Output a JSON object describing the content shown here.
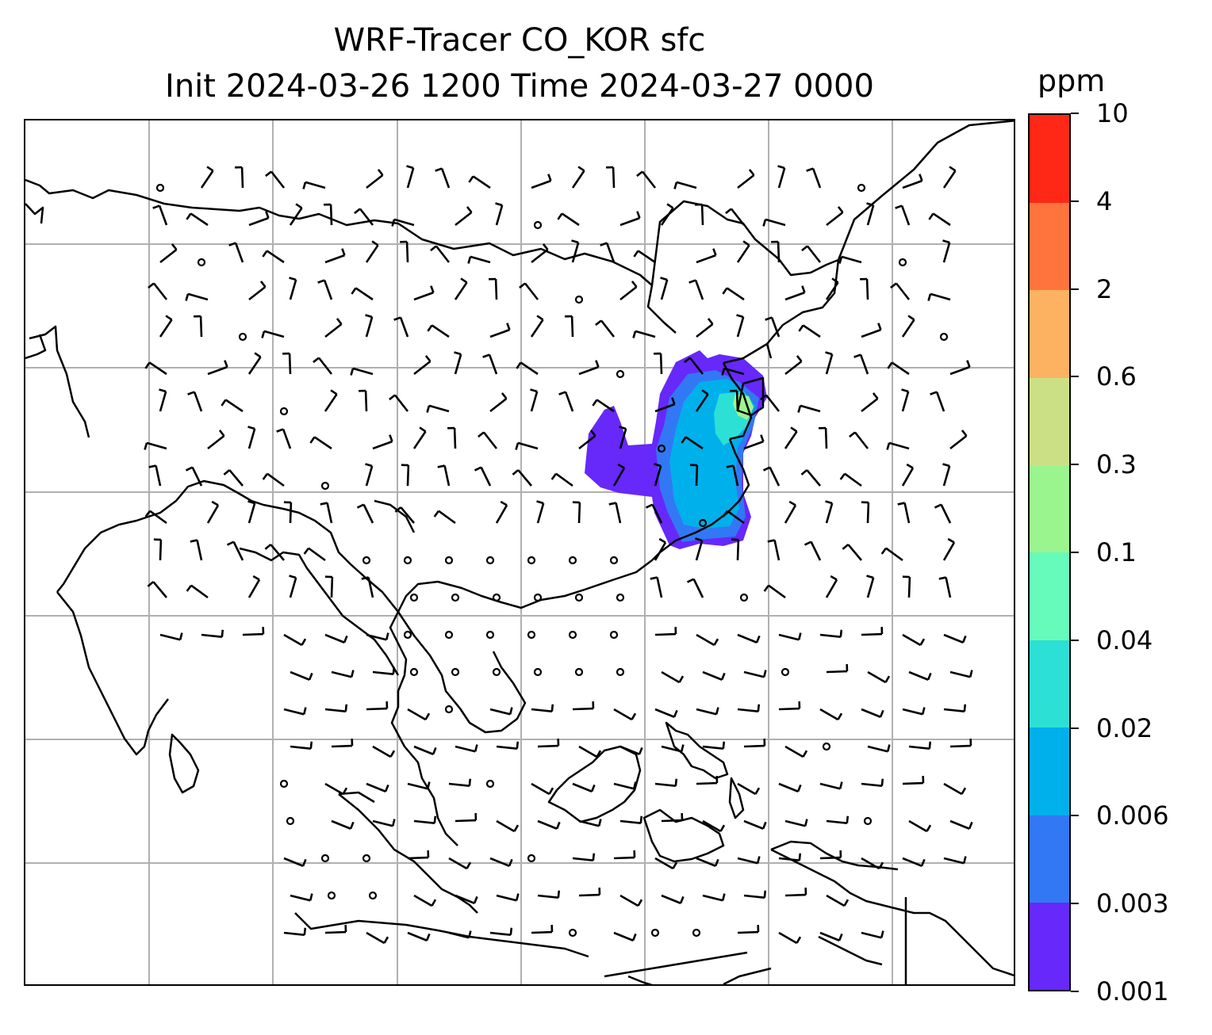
{
  "title_line1": "WRF-Tracer CO_KOR sfc",
  "title_line2": "Init 2024-03-26 1200 Time 2024-03-27 0000",
  "colorbar": {
    "unit": "ppm",
    "levels": [
      "0.001",
      "0.003",
      "0.006",
      "0.02",
      "0.04",
      "0.1",
      "0.3",
      "0.6",
      "2",
      "4",
      "10"
    ],
    "colors": [
      "#6728fa",
      "#3278f5",
      "#00b0eb",
      "#2ce0d6",
      "#67fbbb",
      "#9bf58f",
      "#cbe085",
      "#fdb261",
      "#ff743c",
      "#ff2716"
    ]
  },
  "map": {
    "gridlines": true,
    "gridline_color": "#b0b0b0",
    "coastline_color": "#000000",
    "plume_colors": {
      "outer": "#6728fa",
      "mid": "#3278f5",
      "core": "#00b0eb",
      "inner": "#2ce0d6",
      "peak": "#9bf58f"
    }
  }
}
